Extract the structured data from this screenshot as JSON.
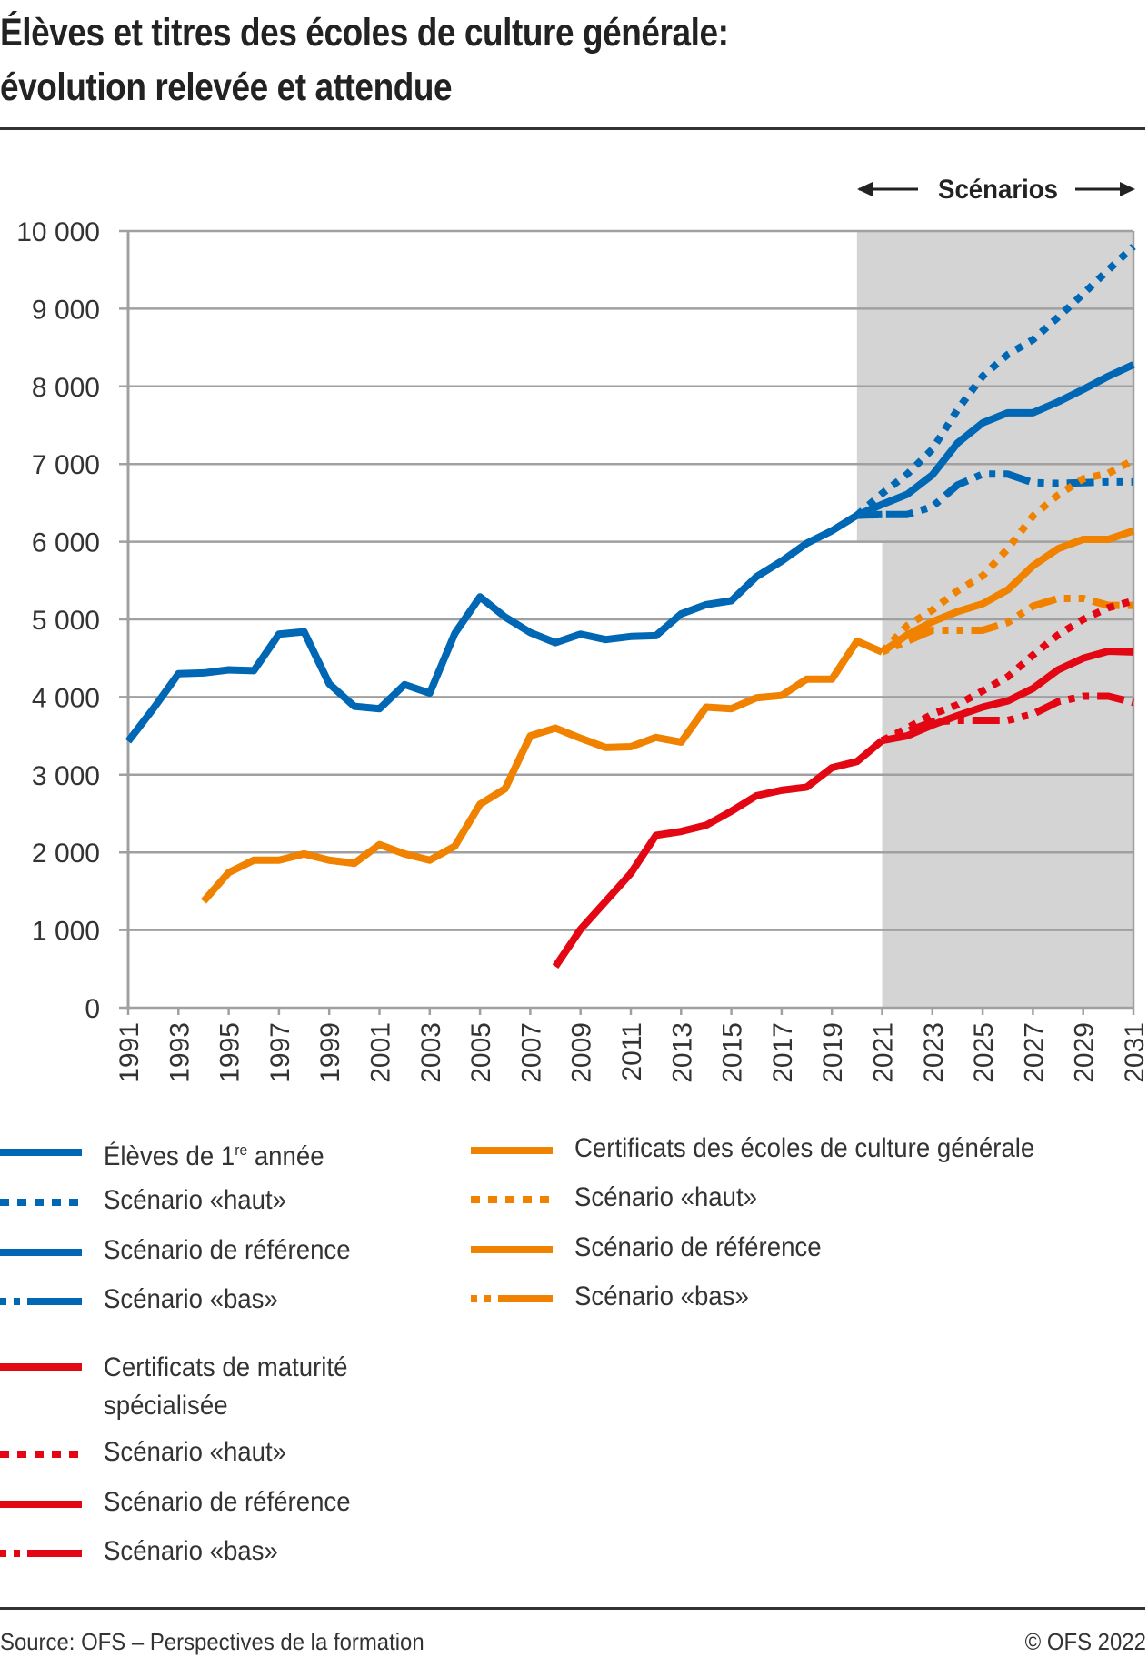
{
  "title_line1": "Élèves et titres des écoles de culture générale:",
  "title_line2": "évolution relevée et attendue",
  "scenarios_label": "Scénarios",
  "colors": {
    "blue": "#0067b4",
    "orange": "#f08200",
    "red": "#e30613",
    "shade": "#d4d4d4",
    "grid": "#a0a0a0"
  },
  "chart_data": {
    "type": "line",
    "title": "Élèves et titres des écoles de culture générale: évolution relevée et attendue",
    "xlabel": "",
    "ylabel": "",
    "xlim": [
      1991,
      2031
    ],
    "ylim": [
      0,
      10000
    ],
    "yticks": [
      0,
      1000,
      2000,
      3000,
      4000,
      5000,
      6000,
      7000,
      8000,
      9000,
      10000
    ],
    "ytick_labels": [
      "0",
      "1 000",
      "2 000",
      "3 000",
      "4 000",
      "5 000",
      "6 000",
      "7 000",
      "8 000",
      "9 000",
      "10 000"
    ],
    "xticks": [
      1991,
      1993,
      1995,
      1997,
      1999,
      2001,
      2003,
      2005,
      2007,
      2009,
      2011,
      2013,
      2015,
      2017,
      2019,
      2021,
      2023,
      2025,
      2027,
      2029,
      2031
    ],
    "grid": true,
    "scenario_shading": {
      "upper_from": 2020,
      "lower_from": 2021,
      "split_value": 6000,
      "label": "Scénarios"
    },
    "series": [
      {
        "name": "Élèves de 1re année",
        "color": "blue",
        "style": "solid",
        "x": [
          1991,
          1992,
          1993,
          1994,
          1995,
          1996,
          1997,
          1998,
          1999,
          2000,
          2001,
          2002,
          2003,
          2004,
          2005,
          2006,
          2007,
          2008,
          2009,
          2010,
          2011,
          2012,
          2013,
          2014,
          2015,
          2016,
          2017,
          2018,
          2019,
          2020,
          2021
        ],
        "values": [
          3430,
          3850,
          4300,
          4310,
          4350,
          4340,
          4810,
          4840,
          4170,
          3880,
          3850,
          4160,
          4050,
          4820,
          5290,
          5030,
          4830,
          4700,
          4810,
          4740,
          4780,
          4790,
          5070,
          5190,
          5240,
          5550,
          5750,
          5980,
          6140,
          6340,
          6350
        ]
      },
      {
        "name": "Scénario «haut»",
        "group": "Élèves de 1re année",
        "color": "blue",
        "style": "dotted",
        "x": [
          2020,
          2021,
          2022,
          2023,
          2024,
          2025,
          2026,
          2027,
          2028,
          2029,
          2030,
          2031
        ],
        "values": [
          6340,
          6620,
          6870,
          7190,
          7700,
          8130,
          8410,
          8600,
          8890,
          9190,
          9500,
          9800
        ]
      },
      {
        "name": "Scénario de référence",
        "group": "Élèves de 1re année",
        "color": "blue",
        "style": "solid",
        "x": [
          2020,
          2021,
          2022,
          2023,
          2024,
          2025,
          2026,
          2027,
          2028,
          2029,
          2030,
          2031
        ],
        "values": [
          6340,
          6480,
          6610,
          6860,
          7270,
          7530,
          7660,
          7660,
          7800,
          7960,
          8130,
          8280
        ]
      },
      {
        "name": "Scénario «bas»",
        "group": "Élèves de 1re année",
        "color": "blue",
        "style": "dashdot",
        "x": [
          2020,
          2021,
          2022,
          2023,
          2024,
          2025,
          2026,
          2027,
          2028,
          2029,
          2030,
          2031
        ],
        "values": [
          6340,
          6350,
          6350,
          6450,
          6730,
          6870,
          6870,
          6760,
          6750,
          6760,
          6770,
          6770
        ]
      },
      {
        "name": "Certificats des écoles de culture générale",
        "color": "orange",
        "style": "solid",
        "x": [
          1994,
          1995,
          1996,
          1997,
          1998,
          1999,
          2000,
          2001,
          2002,
          2003,
          2004,
          2005,
          2006,
          2007,
          2008,
          2009,
          2010,
          2011,
          2012,
          2013,
          2014,
          2015,
          2016,
          2017,
          2018,
          2019,
          2020,
          2021
        ],
        "values": [
          1370,
          1740,
          1900,
          1900,
          1980,
          1900,
          1860,
          2100,
          1980,
          1900,
          2080,
          2620,
          2820,
          3500,
          3600,
          3470,
          3350,
          3360,
          3480,
          3420,
          3870,
          3850,
          3990,
          4020,
          4230,
          4230,
          4720,
          4580
        ]
      },
      {
        "name": "Scénario «haut»",
        "group": "Certificats des écoles de culture générale",
        "color": "orange",
        "style": "dotted",
        "x": [
          2021,
          2022,
          2023,
          2024,
          2025,
          2026,
          2027,
          2028,
          2029,
          2030,
          2031
        ],
        "values": [
          4580,
          4920,
          5120,
          5370,
          5560,
          5910,
          6330,
          6600,
          6810,
          6880,
          7050
        ]
      },
      {
        "name": "Scénario de référence",
        "group": "Certificats des écoles de culture générale",
        "color": "orange",
        "style": "solid",
        "x": [
          2021,
          2022,
          2023,
          2024,
          2025,
          2026,
          2027,
          2028,
          2029,
          2030,
          2031
        ],
        "values": [
          4580,
          4800,
          4970,
          5100,
          5200,
          5380,
          5690,
          5910,
          6030,
          6030,
          6140
        ]
      },
      {
        "name": "Scénario «bas»",
        "group": "Certificats des écoles de culture générale",
        "color": "orange",
        "style": "dashdot",
        "x": [
          2021,
          2022,
          2023,
          2024,
          2025,
          2026,
          2027,
          2028,
          2029,
          2030,
          2031
        ],
        "values": [
          4580,
          4720,
          4860,
          4860,
          4860,
          4960,
          5170,
          5270,
          5270,
          5180,
          5180
        ]
      },
      {
        "name": "Certificats de maturité spécialisée",
        "color": "red",
        "style": "solid",
        "x": [
          2008,
          2009,
          2010,
          2011,
          2012,
          2013,
          2014,
          2015,
          2016,
          2017,
          2018,
          2019,
          2020,
          2021
        ],
        "values": [
          530,
          1010,
          1370,
          1730,
          2220,
          2270,
          2350,
          2530,
          2730,
          2800,
          2840,
          3090,
          3170,
          3440
        ]
      },
      {
        "name": "Scénario «haut»",
        "group": "Certificats de maturité spécialisée",
        "color": "red",
        "style": "dotted",
        "x": [
          2021,
          2022,
          2023,
          2024,
          2025,
          2026,
          2027,
          2028,
          2029,
          2030,
          2031
        ],
        "values": [
          3440,
          3600,
          3780,
          3900,
          4080,
          4260,
          4540,
          4800,
          5000,
          5150,
          5240
        ]
      },
      {
        "name": "Scénario de référence",
        "group": "Certificats de maturité spécialisée",
        "color": "red",
        "style": "solid",
        "x": [
          2021,
          2022,
          2023,
          2024,
          2025,
          2026,
          2027,
          2028,
          2029,
          2030,
          2031
        ],
        "values": [
          3440,
          3500,
          3640,
          3760,
          3870,
          3950,
          4110,
          4350,
          4500,
          4590,
          4580
        ]
      },
      {
        "name": "Scénario «bas»",
        "group": "Certificats de maturité spécialisée",
        "color": "red",
        "style": "dashdot",
        "x": [
          2021,
          2022,
          2023,
          2024,
          2025,
          2026,
          2027,
          2028,
          2029,
          2030,
          2031
        ],
        "values": [
          3440,
          3560,
          3680,
          3700,
          3700,
          3700,
          3780,
          3940,
          4010,
          4010,
          3930
        ]
      }
    ],
    "legend_placement": "bottom"
  },
  "legend": {
    "col1": [
      {
        "label": "Élèves de 1re année",
        "color": "blue",
        "style": "solid"
      },
      {
        "label": "Scénario «haut»",
        "color": "blue",
        "style": "dotted"
      },
      {
        "label": "Scénario de référence",
        "color": "blue",
        "style": "solid"
      },
      {
        "label": "Scénario «bas»",
        "color": "blue",
        "style": "dashdot"
      },
      {
        "label": "Certificats de maturité spécialisée",
        "color": "red",
        "style": "solid"
      },
      {
        "label": "Scénario «haut»",
        "color": "red",
        "style": "dotted"
      },
      {
        "label": "Scénario de référence",
        "color": "red",
        "style": "solid"
      },
      {
        "label": "Scénario «bas»",
        "color": "red",
        "style": "dashdot"
      }
    ],
    "col2": [
      {
        "label": "Certificats des écoles de culture générale",
        "color": "orange",
        "style": "solid"
      },
      {
        "label": "Scénario «haut»",
        "color": "orange",
        "style": "dotted"
      },
      {
        "label": "Scénario de référence",
        "color": "orange",
        "style": "solid"
      },
      {
        "label": "Scénario «bas»",
        "color": "orange",
        "style": "dashdot"
      }
    ]
  },
  "footer": {
    "source": "Source: OFS – Perspectives de la formation",
    "copyright": "© OFS 2022"
  }
}
